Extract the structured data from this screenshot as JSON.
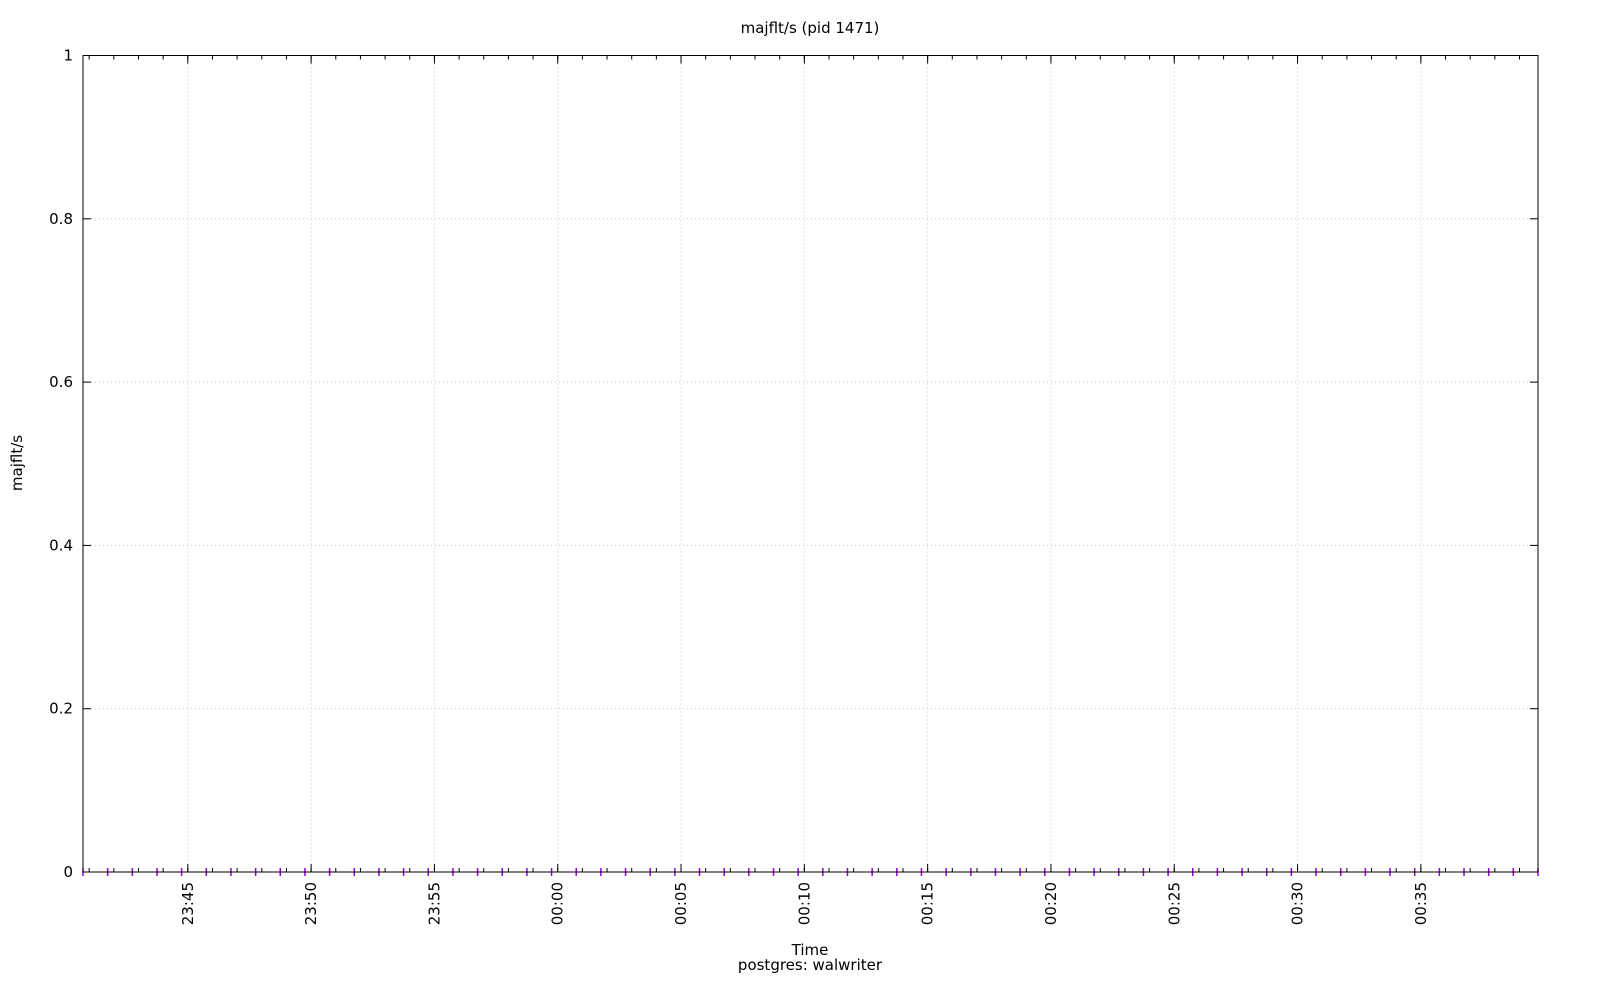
{
  "chart_data": {
    "type": "scatter",
    "title": "majflt/s (pid 1471)",
    "xlabel": "Time",
    "subtitle": "postgres: walwriter",
    "ylabel": "majflt/s",
    "xlim": [
      "23:40:45",
      "00:39:45"
    ],
    "ylim": [
      0,
      1
    ],
    "yticks": [
      "0",
      "0.2",
      "0.4",
      "0.6",
      "0.8",
      "1"
    ],
    "xticks": [
      "23:45",
      "23:50",
      "23:55",
      "00:00",
      "00:05",
      "00:10",
      "00:15",
      "00:20",
      "00:25",
      "00:30",
      "00:35"
    ],
    "grid": true,
    "marker_color": "#9400d3",
    "x": [
      "23:40:45",
      "23:41:45",
      "23:42:45",
      "23:43:45",
      "23:44:45",
      "23:45:45",
      "23:46:45",
      "23:47:45",
      "23:48:45",
      "23:49:45",
      "23:50:45",
      "23:51:45",
      "23:52:45",
      "23:53:45",
      "23:54:45",
      "23:55:45",
      "23:56:45",
      "23:57:45",
      "23:58:45",
      "23:59:45",
      "00:00:45",
      "00:01:45",
      "00:02:45",
      "00:03:45",
      "00:04:45",
      "00:05:45",
      "00:06:45",
      "00:07:45",
      "00:08:45",
      "00:09:45",
      "00:10:45",
      "00:11:45",
      "00:12:45",
      "00:13:45",
      "00:14:45",
      "00:15:45",
      "00:16:45",
      "00:17:45",
      "00:18:45",
      "00:19:45",
      "00:20:45",
      "00:21:45",
      "00:22:45",
      "00:23:45",
      "00:24:45",
      "00:25:45",
      "00:26:45",
      "00:27:45",
      "00:28:45",
      "00:29:45",
      "00:30:45",
      "00:31:45",
      "00:32:45",
      "00:33:45",
      "00:34:45",
      "00:35:45",
      "00:36:45",
      "00:37:45",
      "00:38:45",
      "00:39:45"
    ],
    "y": [
      0,
      0,
      0,
      0,
      0,
      0,
      0,
      0,
      0,
      0,
      0,
      0,
      0,
      0,
      0,
      0,
      0,
      0,
      0,
      0,
      0,
      0,
      0,
      0,
      0,
      0,
      0,
      0,
      0,
      0,
      0,
      0,
      0,
      0,
      0,
      0,
      0,
      0,
      0,
      0,
      0,
      0,
      0,
      0,
      0,
      0,
      0,
      0,
      0,
      0,
      0,
      0,
      0,
      0,
      0,
      0,
      0,
      0,
      0,
      0
    ]
  }
}
